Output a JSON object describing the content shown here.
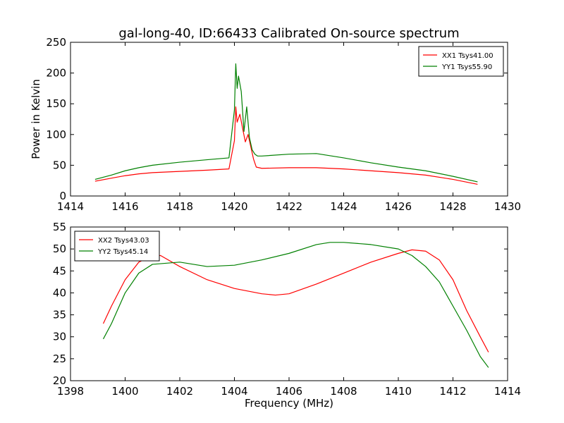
{
  "chart_data": [
    {
      "type": "line",
      "title": "gal-long-40, ID:66433 Calibrated On-source spectrum",
      "xlabel": "",
      "ylabel": "Power in Kelvin",
      "xlim": [
        1414,
        1430
      ],
      "ylim": [
        0,
        250
      ],
      "xticks": [
        "1414",
        "1416",
        "1418",
        "1420",
        "1422",
        "1424",
        "1426",
        "1428",
        "1430"
      ],
      "yticks": [
        "0",
        "50",
        "100",
        "150",
        "200",
        "250"
      ],
      "grid": false,
      "legend": "top-right",
      "series": [
        {
          "name": "XX1 Tsys41.00",
          "color": "#ff0000",
          "x": [
            1414.9,
            1415.5,
            1416.0,
            1416.5,
            1417.0,
            1418.0,
            1419.0,
            1419.8,
            1420.0,
            1420.05,
            1420.1,
            1420.2,
            1420.3,
            1420.4,
            1420.5,
            1420.6,
            1420.7,
            1420.8,
            1421.0,
            1422.0,
            1423.0,
            1424.0,
            1425.0,
            1426.0,
            1427.0,
            1428.0,
            1428.9
          ],
          "y": [
            24,
            29,
            33,
            36,
            38,
            40,
            42,
            44,
            90,
            145,
            120,
            133,
            110,
            88,
            100,
            80,
            60,
            47,
            45,
            46,
            46,
            44,
            41,
            38,
            34,
            27,
            19
          ]
        },
        {
          "name": "YY1 Tsys55.90",
          "color": "#008000",
          "x": [
            1414.9,
            1415.5,
            1416.0,
            1416.5,
            1417.0,
            1418.0,
            1419.0,
            1419.8,
            1420.0,
            1420.05,
            1420.1,
            1420.15,
            1420.25,
            1420.35,
            1420.45,
            1420.55,
            1420.65,
            1420.75,
            1420.85,
            1421.0,
            1422.0,
            1423.0,
            1424.0,
            1425.0,
            1426.0,
            1427.0,
            1428.0,
            1428.9
          ],
          "y": [
            27,
            34,
            41,
            46,
            50,
            55,
            59,
            62,
            140,
            215,
            175,
            195,
            170,
            105,
            145,
            95,
            75,
            68,
            65,
            65,
            68,
            69,
            62,
            54,
            47,
            41,
            32,
            23
          ]
        }
      ]
    },
    {
      "type": "line",
      "title": "",
      "xlabel": "Frequency (MHz)",
      "ylabel": "",
      "xlim": [
        1398,
        1414
      ],
      "ylim": [
        20,
        55
      ],
      "xticks": [
        "1398",
        "1400",
        "1402",
        "1404",
        "1406",
        "1408",
        "1410",
        "1412",
        "1414"
      ],
      "yticks": [
        "20",
        "25",
        "30",
        "35",
        "40",
        "45",
        "50",
        "55"
      ],
      "grid": false,
      "legend": "top-left",
      "series": [
        {
          "name": "XX2 Tsys43.03",
          "color": "#ff0000",
          "x": [
            1399.2,
            1399.5,
            1400.0,
            1400.5,
            1401.0,
            1401.3,
            1402.0,
            1403.0,
            1404.0,
            1405.0,
            1405.5,
            1406.0,
            1407.0,
            1408.0,
            1409.0,
            1410.0,
            1410.5,
            1411.0,
            1411.5,
            1412.0,
            1412.5,
            1413.0,
            1413.3
          ],
          "y": [
            33,
            37,
            43,
            47,
            48.5,
            48.5,
            46,
            43,
            41,
            39.8,
            39.5,
            39.8,
            42,
            44.5,
            47,
            49,
            49.8,
            49.5,
            47.5,
            43,
            36,
            30,
            26.5
          ]
        },
        {
          "name": "YY2 Tsys45.14",
          "color": "#008000",
          "x": [
            1399.2,
            1399.5,
            1400.0,
            1400.5,
            1401.0,
            1402.0,
            1403.0,
            1404.0,
            1405.0,
            1406.0,
            1407.0,
            1407.5,
            1408.0,
            1409.0,
            1410.0,
            1410.5,
            1411.0,
            1411.5,
            1412.0,
            1412.5,
            1413.0,
            1413.3
          ],
          "y": [
            29.5,
            33,
            40,
            44.5,
            46.5,
            47,
            46,
            46.3,
            47.5,
            49,
            51,
            51.5,
            51.5,
            51,
            50,
            48.5,
            46,
            42.5,
            37,
            31.5,
            25.5,
            23
          ]
        }
      ]
    }
  ]
}
